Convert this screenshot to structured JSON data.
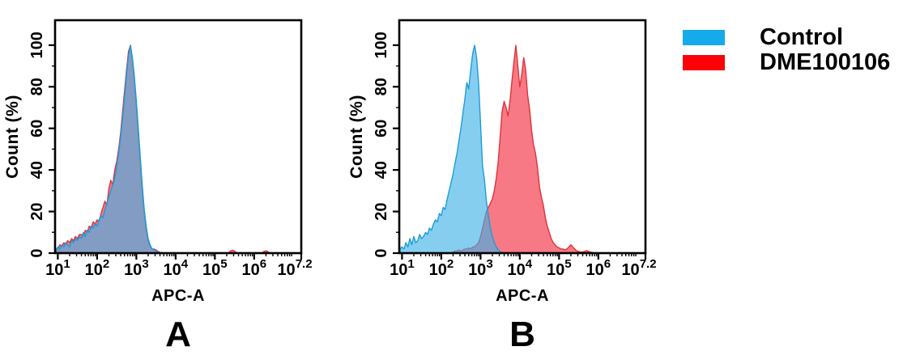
{
  "figure": {
    "background": "#ffffff"
  },
  "legend": {
    "position": "right",
    "items": [
      {
        "label": "Control",
        "color": "#14ABE8"
      },
      {
        "label": "DME100106",
        "color": "#FA0207"
      }
    ]
  },
  "chart_data": [
    {
      "type": "area",
      "panel": "A",
      "title": "",
      "xlabel": "APC-A",
      "ylabel": "Count (%)",
      "x_scale": "log10",
      "x_range_log": [
        0.93,
        7.2
      ],
      "x_ticks_exponents": [
        1,
        2,
        3,
        4,
        5,
        6,
        7.2
      ],
      "y_ticks": [
        0,
        20,
        40,
        60,
        80,
        100
      ],
      "y_minor_step": 10,
      "y_range": [
        0,
        112
      ],
      "grid": false,
      "series": [
        {
          "name": "DME100106",
          "fill": "rgba(242,38,58,0.62)",
          "stroke": "#E13238",
          "segments": [
            {
              "x_start": 0.95,
              "x_step": 0.05,
              "values": [
                2,
                2,
                4,
                3,
                5,
                4,
                6,
                5,
                7,
                6,
                8,
                7,
                9,
                9,
                8,
                11,
                10,
                13,
                12,
                15,
                14,
                16,
                15,
                19,
                22,
                25,
                23,
                31,
                35,
                33,
                40,
                44,
                50,
                58,
                68,
                78,
                88,
                97,
                100,
                92,
                83,
                70,
                57,
                43,
                30,
                19,
                11,
                6,
                3,
                2,
                2,
                1.5,
                0.8,
                0.4,
                0.2,
                0
              ]
            },
            {
              "x_start": 5.35,
              "x_step": 0.05,
              "values": [
                0,
                1,
                1.4,
                1,
                0
              ]
            },
            {
              "x_start": 6.2,
              "x_step": 0.05,
              "values": [
                0,
                0.8,
                1.1,
                0.7,
                0
              ]
            }
          ]
        },
        {
          "name": "Control",
          "fill": "rgba(64,178,232,0.63)",
          "stroke": "#1B9CD8",
          "segments": [
            {
              "x_start": 0.95,
              "x_step": 0.05,
              "values": [
                1,
                3,
                2,
                4,
                3,
                5,
                4,
                3,
                6,
                5,
                7,
                6,
                8,
                7,
                10,
                8,
                11,
                10,
                13,
                12,
                14,
                13,
                16,
                18,
                17,
                21,
                24,
                27,
                30,
                33,
                36,
                42,
                48,
                56,
                65,
                75,
                86,
                95,
                100,
                94,
                85,
                73,
                60,
                46,
                33,
                21,
                13,
                7,
                4,
                2,
                1.5,
                1,
                0.5,
                0.3,
                0.2,
                0
              ]
            }
          ]
        }
      ]
    },
    {
      "type": "area",
      "panel": "B",
      "title": "",
      "xlabel": "APC-A",
      "ylabel": "Count (%)",
      "x_scale": "log10",
      "x_range_log": [
        0.93,
        7.2
      ],
      "x_ticks_exponents": [
        1,
        2,
        3,
        4,
        5,
        6,
        7.2
      ],
      "y_ticks": [
        0,
        20,
        40,
        60,
        80,
        100
      ],
      "y_minor_step": 10,
      "y_range": [
        0,
        112
      ],
      "grid": false,
      "series": [
        {
          "name": "DME100106",
          "fill": "rgba(242,38,58,0.62)",
          "stroke": "#E13238",
          "segments": [
            {
              "x_start": 2.3,
              "x_step": 0.05,
              "values": [
                0.5,
                1,
                1,
                1.5,
                1,
                1.5,
                2,
                2,
                2.5,
                2,
                3,
                3,
                4,
                5,
                8,
                12,
                16,
                20,
                22,
                24,
                26,
                30,
                36,
                44,
                56,
                68,
                73,
                70,
                66,
                73,
                83,
                92,
                100,
                90,
                80,
                86,
                94,
                88,
                76,
                69,
                59,
                52,
                48,
                41,
                32,
                27,
                23,
                17,
                13,
                10,
                7,
                5,
                4,
                3,
                2.5,
                2,
                2,
                1.5,
                2,
                3,
                4,
                3,
                2,
                1,
                0.8,
                0.5,
                0.5,
                0.8,
                1.2,
                0.8,
                0.5,
                0.3,
                0
              ]
            }
          ]
        },
        {
          "name": "Control",
          "fill": "rgba(64,178,232,0.63)",
          "stroke": "#1B9CD8",
          "segments": [
            {
              "x_start": 0.95,
              "x_step": 0.05,
              "values": [
                2,
                3,
                2,
                5,
                3,
                7,
                4,
                8,
                5,
                6,
                9,
                7,
                8,
                10,
                9,
                12,
                11,
                14,
                16,
                15,
                19,
                18,
                22,
                21,
                26,
                30,
                34,
                38,
                43,
                48,
                54,
                60,
                67,
                74,
                82,
                79,
                88,
                96,
                100,
                94,
                82,
                62,
                42,
                35,
                25,
                18,
                12,
                8,
                5,
                3,
                1.5,
                0.8,
                0
              ]
            }
          ]
        }
      ]
    }
  ]
}
